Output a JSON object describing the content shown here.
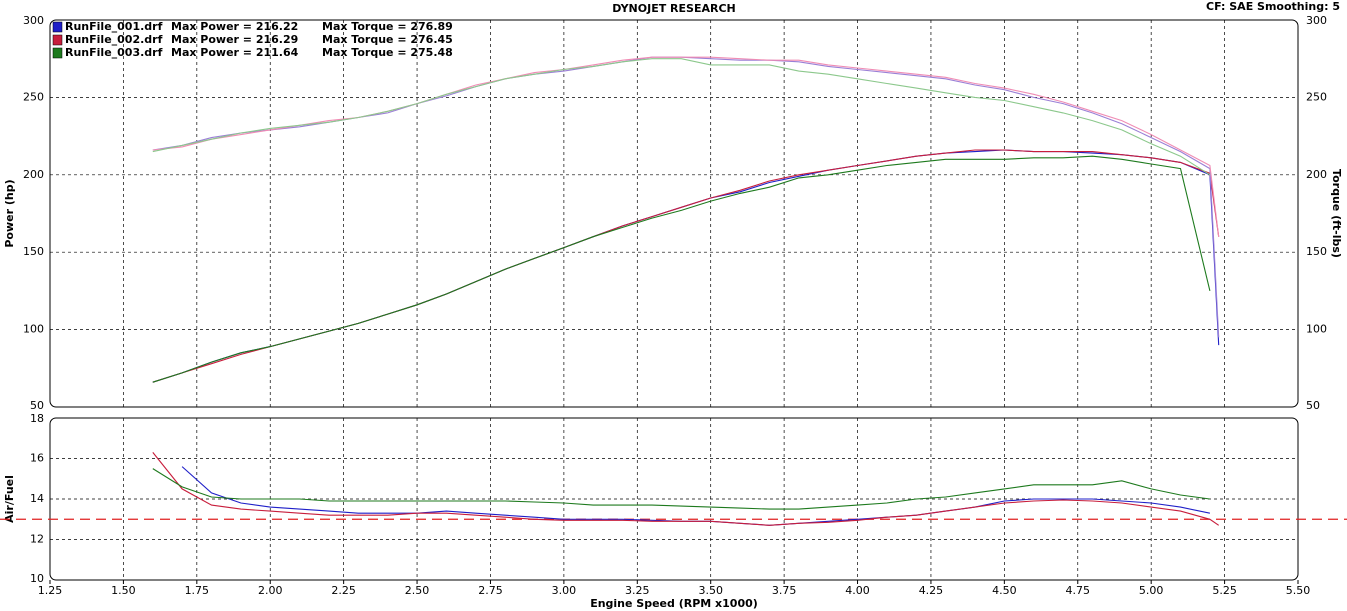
{
  "chart_data": [
    {
      "type": "line",
      "title": "DYNOJET RESEARCH",
      "subtitle": "CF: SAE  Smoothing: 5",
      "ylabel": "Power (hp)",
      "y2label": "Torque (ft-lbs)",
      "xlim": [
        1.25,
        5.5
      ],
      "ylim": [
        50,
        300
      ],
      "yticks": [
        50,
        100,
        150,
        200,
        250,
        300
      ],
      "y2lim": [
        50,
        300
      ],
      "y2ticks": [
        50,
        100,
        150,
        200,
        250,
        300
      ],
      "grid": true,
      "x": [
        1.6,
        1.7,
        1.8,
        1.9,
        2.0,
        2.1,
        2.2,
        2.3,
        2.4,
        2.5,
        2.6,
        2.7,
        2.8,
        2.9,
        3.0,
        3.1,
        3.2,
        3.3,
        3.4,
        3.5,
        3.6,
        3.7,
        3.8,
        3.9,
        4.0,
        4.1,
        4.2,
        4.3,
        4.4,
        4.5,
        4.6,
        4.7,
        4.8,
        4.9,
        5.0,
        5.1,
        5.2,
        5.23
      ],
      "series": [
        {
          "name": "RunFile_001.drf",
          "max_power_label": "Max Power = 216.22",
          "max_torque_label": "Max Torque = 276.89",
          "color": "#1f1fc8",
          "values": [
            66,
            72,
            79,
            85,
            89,
            94,
            99,
            104,
            110,
            116,
            123,
            131,
            139,
            146,
            153,
            160,
            167,
            173,
            179,
            185,
            189,
            195,
            199,
            203,
            206,
            209,
            212,
            214,
            215,
            216,
            215,
            215,
            214,
            213,
            211,
            208,
            200,
            90
          ]
        },
        {
          "name": "RunFile_002.drf",
          "max_power_label": "Max Power = 216.29",
          "max_torque_label": "Max Torque = 276.45",
          "color": "#c81e3c",
          "values": [
            66,
            72,
            78,
            84,
            89,
            94,
            99,
            104,
            110,
            116,
            123,
            131,
            139,
            146,
            153,
            160,
            167,
            173,
            179,
            185,
            190,
            196,
            200,
            203,
            206,
            209,
            212,
            214,
            216,
            216,
            215,
            215,
            215,
            213,
            211,
            208,
            201,
            160
          ]
        },
        {
          "name": "RunFile_003.drf",
          "max_power_label": "Max Power = 211.64",
          "max_torque_label": "Max Torque = 275.48",
          "color": "#1e7a1e",
          "values": [
            66,
            72,
            79,
            85,
            89,
            94,
            99,
            104,
            110,
            116,
            123,
            131,
            139,
            146,
            153,
            160,
            166,
            172,
            177,
            183,
            188,
            192,
            198,
            200,
            203,
            206,
            208,
            210,
            210,
            210,
            211,
            211,
            212,
            210,
            207,
            204,
            125,
            null
          ]
        },
        {
          "axis": "y2",
          "color": "#9a7fd6",
          "values": [
            216,
            219,
            224,
            227,
            229,
            231,
            234,
            237,
            240,
            246,
            251,
            257,
            262,
            265,
            267,
            270,
            273,
            276,
            276,
            275,
            274,
            274,
            273,
            270,
            268,
            266,
            264,
            262,
            258,
            255,
            250,
            246,
            240,
            233,
            224,
            215,
            204,
            95
          ]
        },
        {
          "axis": "y2",
          "color": "#f08cb4",
          "values": [
            216,
            218,
            223,
            226,
            229,
            232,
            235,
            237,
            241,
            246,
            252,
            258,
            262,
            266,
            268,
            271,
            274,
            276,
            276,
            276,
            275,
            274,
            274,
            271,
            269,
            267,
            265,
            263,
            259,
            256,
            252,
            247,
            241,
            235,
            226,
            216,
            206,
            160
          ]
        },
        {
          "axis": "y2",
          "color": "#8cc88c",
          "values": [
            215,
            219,
            223,
            227,
            230,
            232,
            234,
            237,
            241,
            246,
            252,
            257,
            262,
            265,
            268,
            270,
            273,
            275,
            275,
            271,
            271,
            271,
            267,
            265,
            262,
            259,
            256,
            253,
            250,
            248,
            244,
            240,
            235,
            229,
            220,
            212,
            200,
            null
          ]
        }
      ]
    },
    {
      "type": "line",
      "ylabel": "Air/Fuel",
      "xlabel": "Engine Speed (RPM x1000)",
      "xlim": [
        1.25,
        5.5
      ],
      "xticks": [
        1.25,
        {
          "value": 1.5,
          "label": "1.50"
        },
        1.75,
        {
          "value": 2,
          "label": "2.00"
        },
        2.25,
        {
          "value": 2.5,
          "label": "2.50"
        },
        2.75,
        {
          "value": 3,
          "label": "3.00"
        },
        3.25,
        {
          "value": 3.5,
          "label": "3.50"
        },
        3.75,
        {
          "value": 4,
          "label": "4.00"
        },
        4.25,
        {
          "value": 4.5,
          "label": "4.50"
        },
        4.75,
        {
          "value": 5,
          "label": "5.00"
        },
        5.25,
        {
          "value": 5.5,
          "label": "5.50"
        }
      ],
      "ylim": [
        10,
        18
      ],
      "yticks": [
        10,
        12,
        14,
        16,
        18
      ],
      "grid": true,
      "reference_line": 13,
      "reference_color": "#e02020",
      "x": [
        1.6,
        1.7,
        1.8,
        1.9,
        2.0,
        2.1,
        2.2,
        2.3,
        2.4,
        2.5,
        2.6,
        2.7,
        2.8,
        2.9,
        3.0,
        3.1,
        3.2,
        3.3,
        3.4,
        3.5,
        3.6,
        3.7,
        3.8,
        3.9,
        4.0,
        4.1,
        4.2,
        4.3,
        4.4,
        4.5,
        4.6,
        4.7,
        4.8,
        4.9,
        5.0,
        5.1,
        5.2,
        5.23
      ],
      "series": [
        {
          "color": "#1f1fc8",
          "values": [
            null,
            15.6,
            14.3,
            13.8,
            13.6,
            13.5,
            13.4,
            13.3,
            13.3,
            13.3,
            13.4,
            13.3,
            13.2,
            13.1,
            13.0,
            13.0,
            13.0,
            12.95,
            12.9,
            12.9,
            12.8,
            12.7,
            12.8,
            12.9,
            13.0,
            13.1,
            13.2,
            13.4,
            13.6,
            13.9,
            14.0,
            14.0,
            14.0,
            13.9,
            13.8,
            13.6,
            13.3,
            null
          ]
        },
        {
          "color": "#c81e3c",
          "values": [
            16.3,
            14.5,
            13.7,
            13.5,
            13.4,
            13.3,
            13.2,
            13.2,
            13.2,
            13.3,
            13.3,
            13.2,
            13.1,
            13.0,
            12.95,
            12.95,
            12.95,
            12.9,
            12.9,
            12.9,
            12.8,
            12.7,
            12.8,
            12.85,
            12.95,
            13.1,
            13.2,
            13.4,
            13.6,
            13.8,
            13.9,
            13.95,
            13.9,
            13.8,
            13.6,
            13.4,
            13.0,
            12.7
          ]
        },
        {
          "color": "#1e7a1e",
          "values": [
            15.5,
            14.6,
            14.1,
            14.0,
            14.0,
            14.0,
            13.9,
            13.9,
            13.9,
            13.9,
            13.9,
            13.9,
            13.9,
            13.85,
            13.8,
            13.7,
            13.7,
            13.7,
            13.65,
            13.6,
            13.55,
            13.5,
            13.5,
            13.6,
            13.7,
            13.8,
            14.0,
            14.1,
            14.3,
            14.5,
            14.7,
            14.7,
            14.7,
            14.9,
            14.5,
            14.2,
            14.0,
            null
          ]
        }
      ]
    }
  ]
}
